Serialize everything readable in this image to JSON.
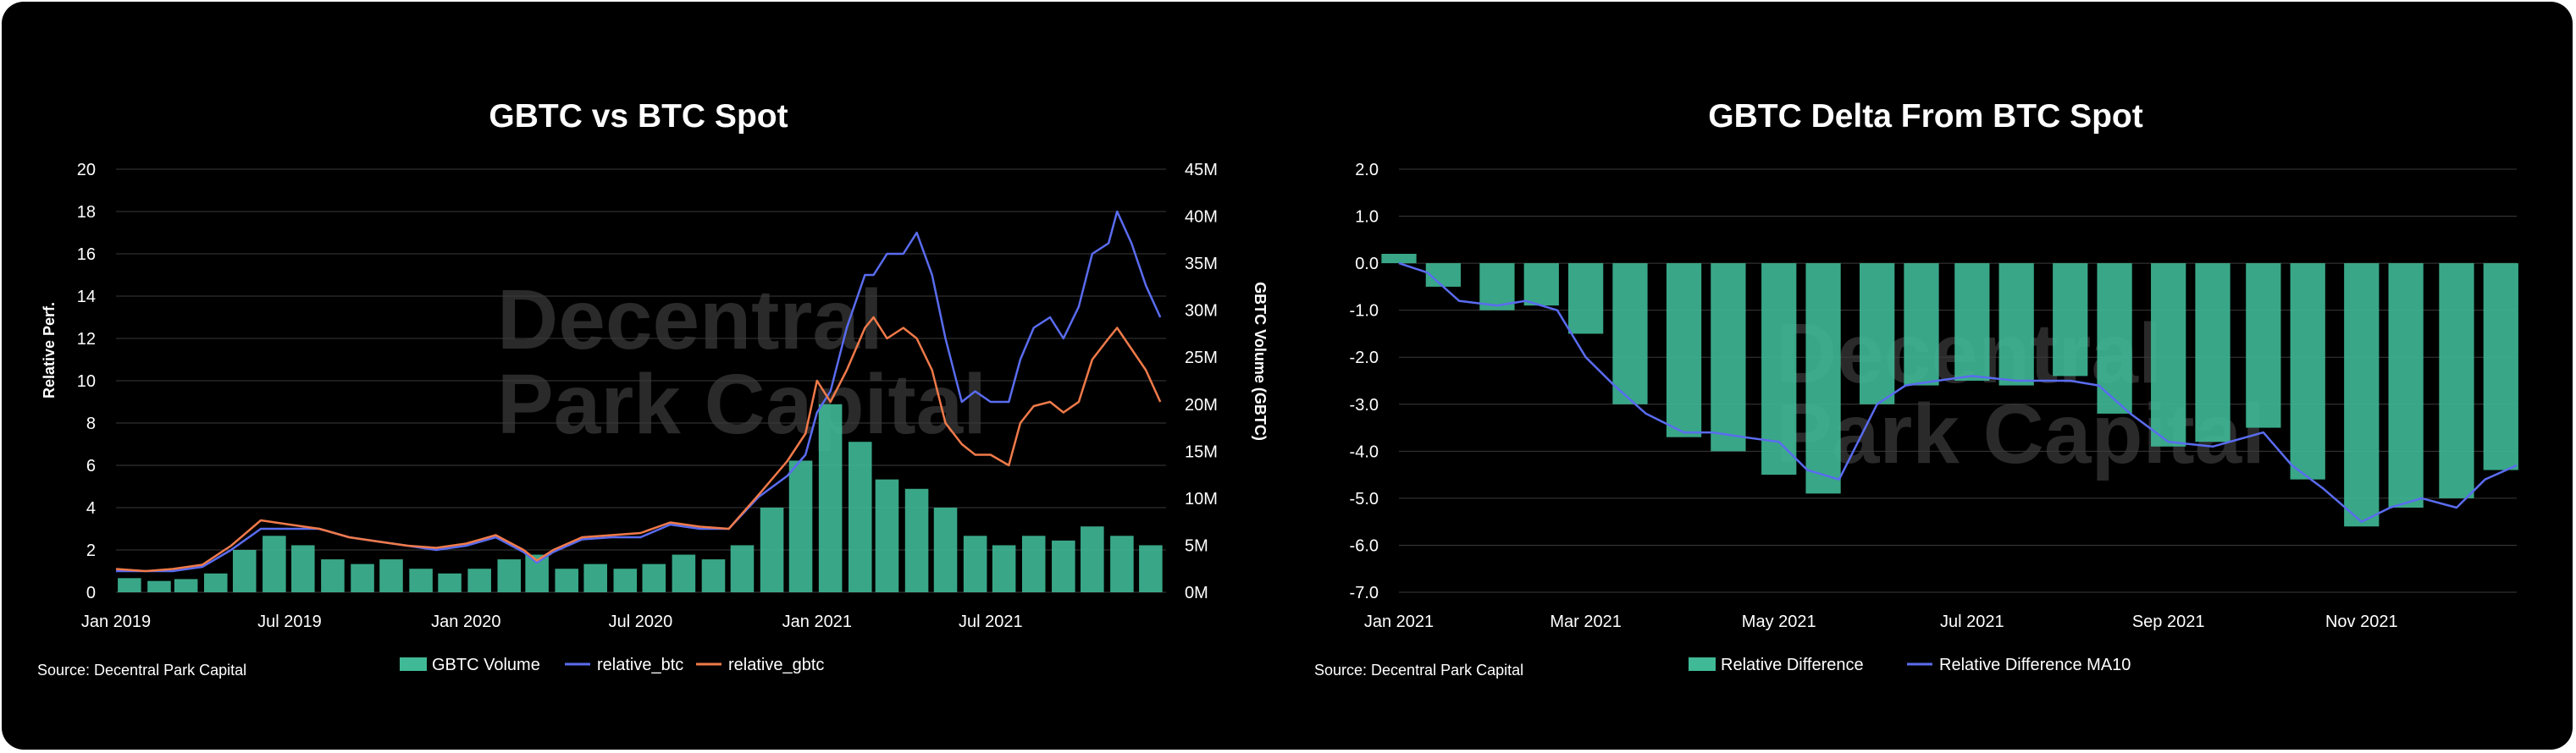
{
  "watermark": {
    "line1": "Decentral",
    "line2": "Park Capital"
  },
  "chart_data": [
    {
      "type": "line",
      "title": "GBTC vs BTC Spot",
      "source": "Source: Decentral Park Capital",
      "ylabel": "Relative Perf.",
      "y2label": "GBTC Volume (GBTC)",
      "ylim": [
        0,
        20
      ],
      "y2lim": [
        0,
        45000000
      ],
      "xlim": [
        "2019-01-01",
        "2021-12-31"
      ],
      "x_ticks": [
        "Jan 2019",
        "Jul 2019",
        "Jan 2020",
        "Jul 2020",
        "Jan 2021",
        "Jul 2021"
      ],
      "y_ticks": [
        "0",
        "2",
        "4",
        "6",
        "8",
        "10",
        "12",
        "14",
        "16",
        "18",
        "20"
      ],
      "y2_ticks": [
        "0M",
        "5M",
        "10M",
        "15M",
        "20M",
        "25M",
        "30M",
        "35M",
        "40M",
        "45M"
      ],
      "grid": true,
      "legend_position": "bottom",
      "series": [
        {
          "name": "GBTC Volume",
          "kind": "bar",
          "axis": "right",
          "color": "#3fb996",
          "x": [
            "2019-01",
            "2019-02",
            "2019-03",
            "2019-04",
            "2019-05",
            "2019-06",
            "2019-07",
            "2019-08",
            "2019-09",
            "2019-10",
            "2019-11",
            "2019-12",
            "2020-01",
            "2020-02",
            "2020-03",
            "2020-04",
            "2020-05",
            "2020-06",
            "2020-07",
            "2020-08",
            "2020-09",
            "2020-10",
            "2020-11",
            "2020-12",
            "2021-01",
            "2021-02",
            "2021-03",
            "2021-04",
            "2021-05",
            "2021-06",
            "2021-07",
            "2021-08",
            "2021-09",
            "2021-10",
            "2021-11",
            "2021-12"
          ],
          "values": [
            1500000,
            1200000,
            1400000,
            2000000,
            4500000,
            6000000,
            5000000,
            3500000,
            3000000,
            3500000,
            2500000,
            2000000,
            2500000,
            3500000,
            4000000,
            2500000,
            3000000,
            2500000,
            3000000,
            4000000,
            3500000,
            5000000,
            9000000,
            14000000,
            20000000,
            16000000,
            12000000,
            11000000,
            9000000,
            6000000,
            5000000,
            6000000,
            5500000,
            7000000,
            6000000,
            5000000
          ]
        },
        {
          "name": "relative_btc",
          "kind": "line",
          "axis": "left",
          "color": "#5a6cf0",
          "x": [
            "2019-01-01",
            "2019-02-01",
            "2019-03-01",
            "2019-04-01",
            "2019-05-01",
            "2019-06-01",
            "2019-07-01",
            "2019-08-01",
            "2019-09-01",
            "2019-10-01",
            "2019-11-01",
            "2019-12-01",
            "2020-01-01",
            "2020-02-01",
            "2020-03-01",
            "2020-03-15",
            "2020-04-01",
            "2020-05-01",
            "2020-06-01",
            "2020-07-01",
            "2020-08-01",
            "2020-09-01",
            "2020-10-01",
            "2020-11-01",
            "2020-12-01",
            "2020-12-20",
            "2021-01-01",
            "2021-01-15",
            "2021-02-01",
            "2021-02-20",
            "2021-03-01",
            "2021-03-15",
            "2021-04-01",
            "2021-04-15",
            "2021-05-01",
            "2021-05-15",
            "2021-06-01",
            "2021-06-15",
            "2021-07-01",
            "2021-07-20",
            "2021-08-01",
            "2021-08-15",
            "2021-09-01",
            "2021-09-15",
            "2021-10-01",
            "2021-10-15",
            "2021-11-01",
            "2021-11-10",
            "2021-11-25",
            "2021-12-10",
            "2021-12-25"
          ],
          "values": [
            1.0,
            1.0,
            1.0,
            1.2,
            2.0,
            3.0,
            3.0,
            3.0,
            2.6,
            2.4,
            2.2,
            2.0,
            2.2,
            2.6,
            1.9,
            1.4,
            1.9,
            2.5,
            2.6,
            2.6,
            3.2,
            3.0,
            3.0,
            4.5,
            5.5,
            6.5,
            8.5,
            9.5,
            12.5,
            15.0,
            15.0,
            16.0,
            16.0,
            17.0,
            15.0,
            12.0,
            9.0,
            9.5,
            9.0,
            9.0,
            11.0,
            12.5,
            13.0,
            12.0,
            13.5,
            16.0,
            16.5,
            18.0,
            16.5,
            14.5,
            13.0
          ]
        },
        {
          "name": "relative_gbtc",
          "kind": "line",
          "axis": "left",
          "color": "#f07a4a",
          "x": [
            "2019-01-01",
            "2019-02-01",
            "2019-03-01",
            "2019-04-01",
            "2019-05-01",
            "2019-06-01",
            "2019-07-01",
            "2019-08-01",
            "2019-09-01",
            "2019-10-01",
            "2019-11-01",
            "2019-12-01",
            "2020-01-01",
            "2020-02-01",
            "2020-03-01",
            "2020-03-15",
            "2020-04-01",
            "2020-05-01",
            "2020-06-01",
            "2020-07-01",
            "2020-08-01",
            "2020-09-01",
            "2020-10-01",
            "2020-11-01",
            "2020-12-01",
            "2020-12-20",
            "2021-01-01",
            "2021-01-15",
            "2021-02-01",
            "2021-02-20",
            "2021-03-01",
            "2021-03-15",
            "2021-04-01",
            "2021-04-15",
            "2021-05-01",
            "2021-05-15",
            "2021-06-01",
            "2021-06-15",
            "2021-07-01",
            "2021-07-20",
            "2021-08-01",
            "2021-08-15",
            "2021-09-01",
            "2021-09-15",
            "2021-10-01",
            "2021-10-15",
            "2021-11-01",
            "2021-11-10",
            "2021-11-25",
            "2021-12-10",
            "2021-12-25"
          ],
          "values": [
            1.1,
            1.0,
            1.1,
            1.3,
            2.2,
            3.4,
            3.2,
            3.0,
            2.6,
            2.4,
            2.2,
            2.1,
            2.3,
            2.7,
            2.0,
            1.5,
            2.0,
            2.6,
            2.7,
            2.8,
            3.3,
            3.1,
            3.0,
            4.6,
            6.2,
            7.5,
            10.0,
            9.0,
            10.5,
            12.5,
            13.0,
            12.0,
            12.5,
            12.0,
            10.5,
            8.0,
            7.0,
            6.5,
            6.5,
            6.0,
            8.0,
            8.8,
            9.0,
            8.5,
            9.0,
            11.0,
            12.0,
            12.5,
            11.5,
            10.5,
            9.0
          ]
        }
      ]
    },
    {
      "type": "bar",
      "title": "GBTC Delta From BTC Spot",
      "source": "Source: Decentral Park Capital",
      "ylim": [
        -7.0,
        2.0
      ],
      "xlim": [
        "2021-01-01",
        "2021-12-20"
      ],
      "x_ticks": [
        "Jan 2021",
        "Mar 2021",
        "May 2021",
        "Jul 2021",
        "Sep 2021",
        "Nov 2021"
      ],
      "y_ticks": [
        "-7.0",
        "-6.0",
        "-5.0",
        "-4.0",
        "-3.0",
        "-2.0",
        "-1.0",
        "0.0",
        "1.0",
        "2.0"
      ],
      "grid": true,
      "legend_position": "bottom",
      "series": [
        {
          "name": "Relative Difference",
          "kind": "bar",
          "color": "#3fb996",
          "x": [
            "2021-01-01",
            "2021-01-15",
            "2021-02-01",
            "2021-02-15",
            "2021-03-01",
            "2021-03-15",
            "2021-04-01",
            "2021-04-15",
            "2021-05-01",
            "2021-05-15",
            "2021-06-01",
            "2021-06-15",
            "2021-07-01",
            "2021-07-15",
            "2021-08-01",
            "2021-08-15",
            "2021-09-01",
            "2021-09-15",
            "2021-10-01",
            "2021-10-15",
            "2021-11-01",
            "2021-11-15",
            "2021-12-01",
            "2021-12-15"
          ],
          "values": [
            0.2,
            -0.5,
            -1.0,
            -0.9,
            -1.5,
            -3.0,
            -3.7,
            -4.0,
            -4.5,
            -4.9,
            -3.0,
            -2.6,
            -2.5,
            -2.6,
            -2.4,
            -3.2,
            -3.9,
            -3.8,
            -3.5,
            -4.6,
            -5.6,
            -5.2,
            -5.0,
            -4.4
          ]
        },
        {
          "name": "Relative Difference MA10",
          "kind": "line",
          "color": "#5a6cf0",
          "x": [
            "2021-01-01",
            "2021-01-10",
            "2021-01-20",
            "2021-02-01",
            "2021-02-10",
            "2021-02-20",
            "2021-03-01",
            "2021-03-10",
            "2021-03-20",
            "2021-04-01",
            "2021-04-10",
            "2021-04-20",
            "2021-05-01",
            "2021-05-10",
            "2021-05-20",
            "2021-06-01",
            "2021-06-10",
            "2021-06-20",
            "2021-07-01",
            "2021-07-15",
            "2021-08-01",
            "2021-08-10",
            "2021-08-20",
            "2021-09-01",
            "2021-09-15",
            "2021-10-01",
            "2021-10-10",
            "2021-10-20",
            "2021-11-01",
            "2021-11-10",
            "2021-11-20",
            "2021-12-01",
            "2021-12-10",
            "2021-12-20"
          ],
          "values": [
            0.0,
            -0.2,
            -0.8,
            -0.9,
            -0.8,
            -1.0,
            -2.0,
            -2.6,
            -3.2,
            -3.6,
            -3.6,
            -3.7,
            -3.8,
            -4.4,
            -4.6,
            -3.0,
            -2.6,
            -2.5,
            -2.4,
            -2.5,
            -2.5,
            -2.6,
            -3.2,
            -3.8,
            -3.9,
            -3.6,
            -4.3,
            -4.8,
            -5.5,
            -5.2,
            -5.0,
            -5.2,
            -4.6,
            -4.3
          ]
        }
      ]
    }
  ]
}
